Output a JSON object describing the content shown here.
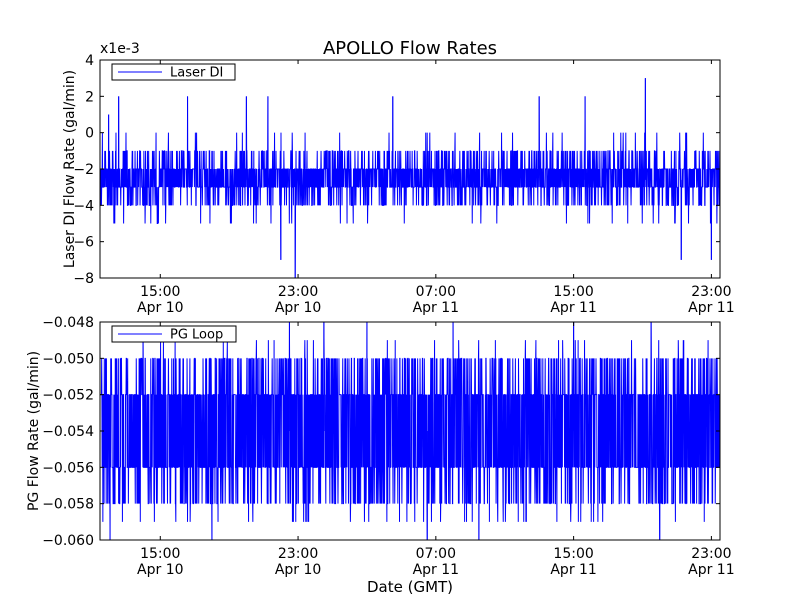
{
  "figure": {
    "title": "APOLLO Flow Rates",
    "xlabel": "Date (GMT)",
    "line_color": "#0000ff"
  },
  "chart_data": [
    {
      "type": "line",
      "ylabel": "Laser DI Flow Rate (gal/min)",
      "offset_label": "x1e-3",
      "ylim": [
        -8,
        4
      ],
      "yticks": [
        -8,
        -6,
        -4,
        -2,
        0,
        2,
        4
      ],
      "ytick_labels": [
        "−8",
        "−6",
        "−4",
        "−2",
        "0",
        "2",
        "4"
      ],
      "xticks": [
        {
          "time": "Apr 10 15:00",
          "label_time": "15:00",
          "label_date": "Apr 10"
        },
        {
          "time": "Apr 10 23:00",
          "label_time": "23:00",
          "label_date": "Apr 10"
        },
        {
          "time": "Apr 11 07:00",
          "label_time": "07:00",
          "label_date": "Apr 11"
        },
        {
          "time": "Apr 11 15:00",
          "label_time": "15:00",
          "label_date": "Apr 11"
        },
        {
          "time": "Apr 11 23:00",
          "label_time": "23:00",
          "label_date": "Apr 11"
        }
      ],
      "xlim": [
        "Apr 10 11:30",
        "Apr 11 23:30"
      ],
      "legend": {
        "position": "top-left"
      },
      "series": [
        {
          "name": "Laser DI",
          "color": "#0000ff",
          "baseline": -2.6,
          "typical_range": [
            -3,
            -2
          ],
          "frequent_range": [
            -4,
            -1
          ],
          "spikes": [
            {
              "time": "Apr 10 12:00",
              "value": 1
            },
            {
              "time": "Apr 10 12:35",
              "value": 2
            },
            {
              "time": "Apr 10 16:35",
              "value": 2
            },
            {
              "time": "Apr 10 20:00",
              "value": 2
            },
            {
              "time": "Apr 10 21:15",
              "value": 2
            },
            {
              "time": "Apr 10 22:00",
              "value": -7
            },
            {
              "time": "Apr 10 22:50",
              "value": -8
            },
            {
              "time": "Apr 11 04:30",
              "value": 2
            },
            {
              "time": "Apr 11 13:00",
              "value": 2
            },
            {
              "time": "Apr 11 15:40",
              "value": 2
            },
            {
              "time": "Apr 11 19:10",
              "value": 3
            },
            {
              "time": "Apr 11 21:15",
              "value": -7
            },
            {
              "time": "Apr 11 23:00",
              "value": -7
            }
          ]
        }
      ]
    },
    {
      "type": "line",
      "ylabel": "PG Flow Rate (gal/min)",
      "ylim": [
        -0.06,
        -0.048
      ],
      "yticks": [
        -0.06,
        -0.058,
        -0.056,
        -0.054,
        -0.052,
        -0.05,
        -0.048
      ],
      "ytick_labels": [
        "−0.060",
        "−0.058",
        "−0.056",
        "−0.054",
        "−0.052",
        "−0.050",
        "−0.048"
      ],
      "xticks": [
        {
          "time": "Apr 10 15:00",
          "label_time": "15:00",
          "label_date": "Apr 10"
        },
        {
          "time": "Apr 10 23:00",
          "label_time": "23:00",
          "label_date": "Apr 10"
        },
        {
          "time": "Apr 11 07:00",
          "label_time": "07:00",
          "label_date": "Apr 11"
        },
        {
          "time": "Apr 11 15:00",
          "label_time": "15:00",
          "label_date": "Apr 11"
        },
        {
          "time": "Apr 11 23:00",
          "label_time": "23:00",
          "label_date": "Apr 11"
        }
      ],
      "xlim": [
        "Apr 10 11:30",
        "Apr 11 23:30"
      ],
      "legend": {
        "position": "top-left"
      },
      "series": [
        {
          "name": "PG Loop",
          "color": "#0000ff",
          "baseline": -0.054,
          "typical_range": [
            -0.056,
            -0.052
          ],
          "frequent_range": [
            -0.058,
            -0.05
          ],
          "spikes": [
            {
              "time": "Apr 10 12:05",
              "value": -0.06
            },
            {
              "time": "Apr 10 14:00",
              "value": -0.049
            },
            {
              "time": "Apr 10 18:00",
              "value": -0.06
            },
            {
              "time": "Apr 10 22:30",
              "value": -0.048
            },
            {
              "time": "Apr 11 00:30",
              "value": -0.048
            },
            {
              "time": "Apr 11 03:00",
              "value": -0.048
            },
            {
              "time": "Apr 11 06:30",
              "value": -0.06
            },
            {
              "time": "Apr 11 08:00",
              "value": -0.048
            },
            {
              "time": "Apr 11 09:30",
              "value": -0.06
            },
            {
              "time": "Apr 11 15:00",
              "value": -0.048
            },
            {
              "time": "Apr 11 19:30",
              "value": -0.048
            },
            {
              "time": "Apr 11 20:00",
              "value": -0.06
            }
          ]
        }
      ]
    }
  ]
}
